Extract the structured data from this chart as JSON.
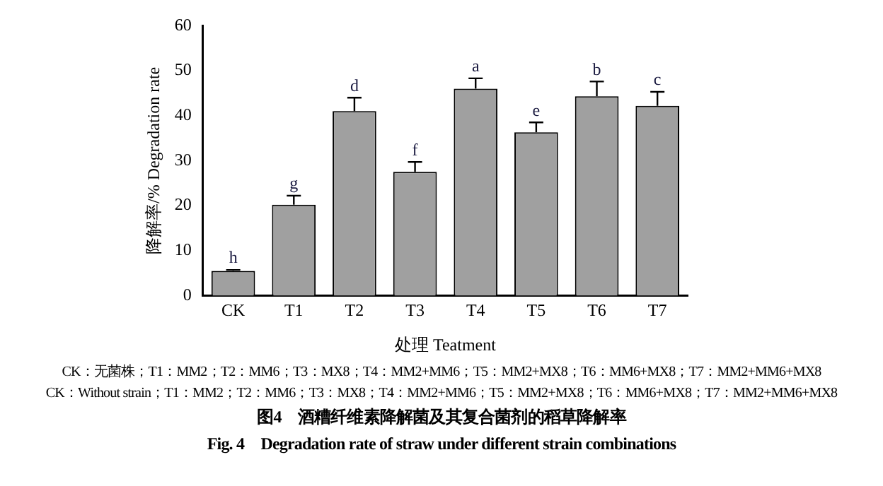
{
  "chart_data": {
    "type": "bar",
    "title": "图4　酒糟纤维素降解菌及其复合菌剂的稻草降解率",
    "subtitle": "Fig. 4　Degradation rate of straw under different strain combinations",
    "xlabel": "处理 Teatment",
    "ylabel": "降解率/% Degradation rate",
    "categories": [
      "CK",
      "T1",
      "T2",
      "T3",
      "T4",
      "T5",
      "T6",
      "T7"
    ],
    "values": [
      5.5,
      20.2,
      41,
      27.5,
      46,
      36.3,
      44.3,
      42.2
    ],
    "errors": [
      0.2,
      2,
      3,
      2.2,
      2.3,
      2.2,
      3.3,
      3.1
    ],
    "color": "#a0a0a0",
    "ylim": [
      0,
      60
    ],
    "yticks": [
      0,
      10,
      20,
      30,
      40,
      50,
      60
    ],
    "grid": false,
    "legend": false,
    "annotations": [
      {
        "text": "h",
        "x": "CK",
        "y": 5.7
      },
      {
        "text": "g",
        "x": "T1",
        "y": 22.2
      },
      {
        "text": "d",
        "x": "T2",
        "y": 44
      },
      {
        "text": "f",
        "x": "T3",
        "y": 29.7
      },
      {
        "text": "a",
        "x": "T4",
        "y": 48.3
      },
      {
        "text": "e",
        "x": "T5",
        "y": 38.5
      },
      {
        "text": "b",
        "x": "T6",
        "y": 47.6
      },
      {
        "text": "c",
        "x": "T7",
        "y": 45.3
      },
      "CK：无菌株；T1：MM2；T2：MM6；T3：MX8；T4：MM2+MM6；T5：MM2+MX8；T6：MM6+MX8；T7：MM2+MM6+MX8",
      "CK：Without strain；T1：MM2；T2：MM6；T3：MX8；T4：MM2+MM6；T5：MM2+MX8；T6：MM6+MX8；T7：MM2+MM6+MX8"
    ]
  }
}
